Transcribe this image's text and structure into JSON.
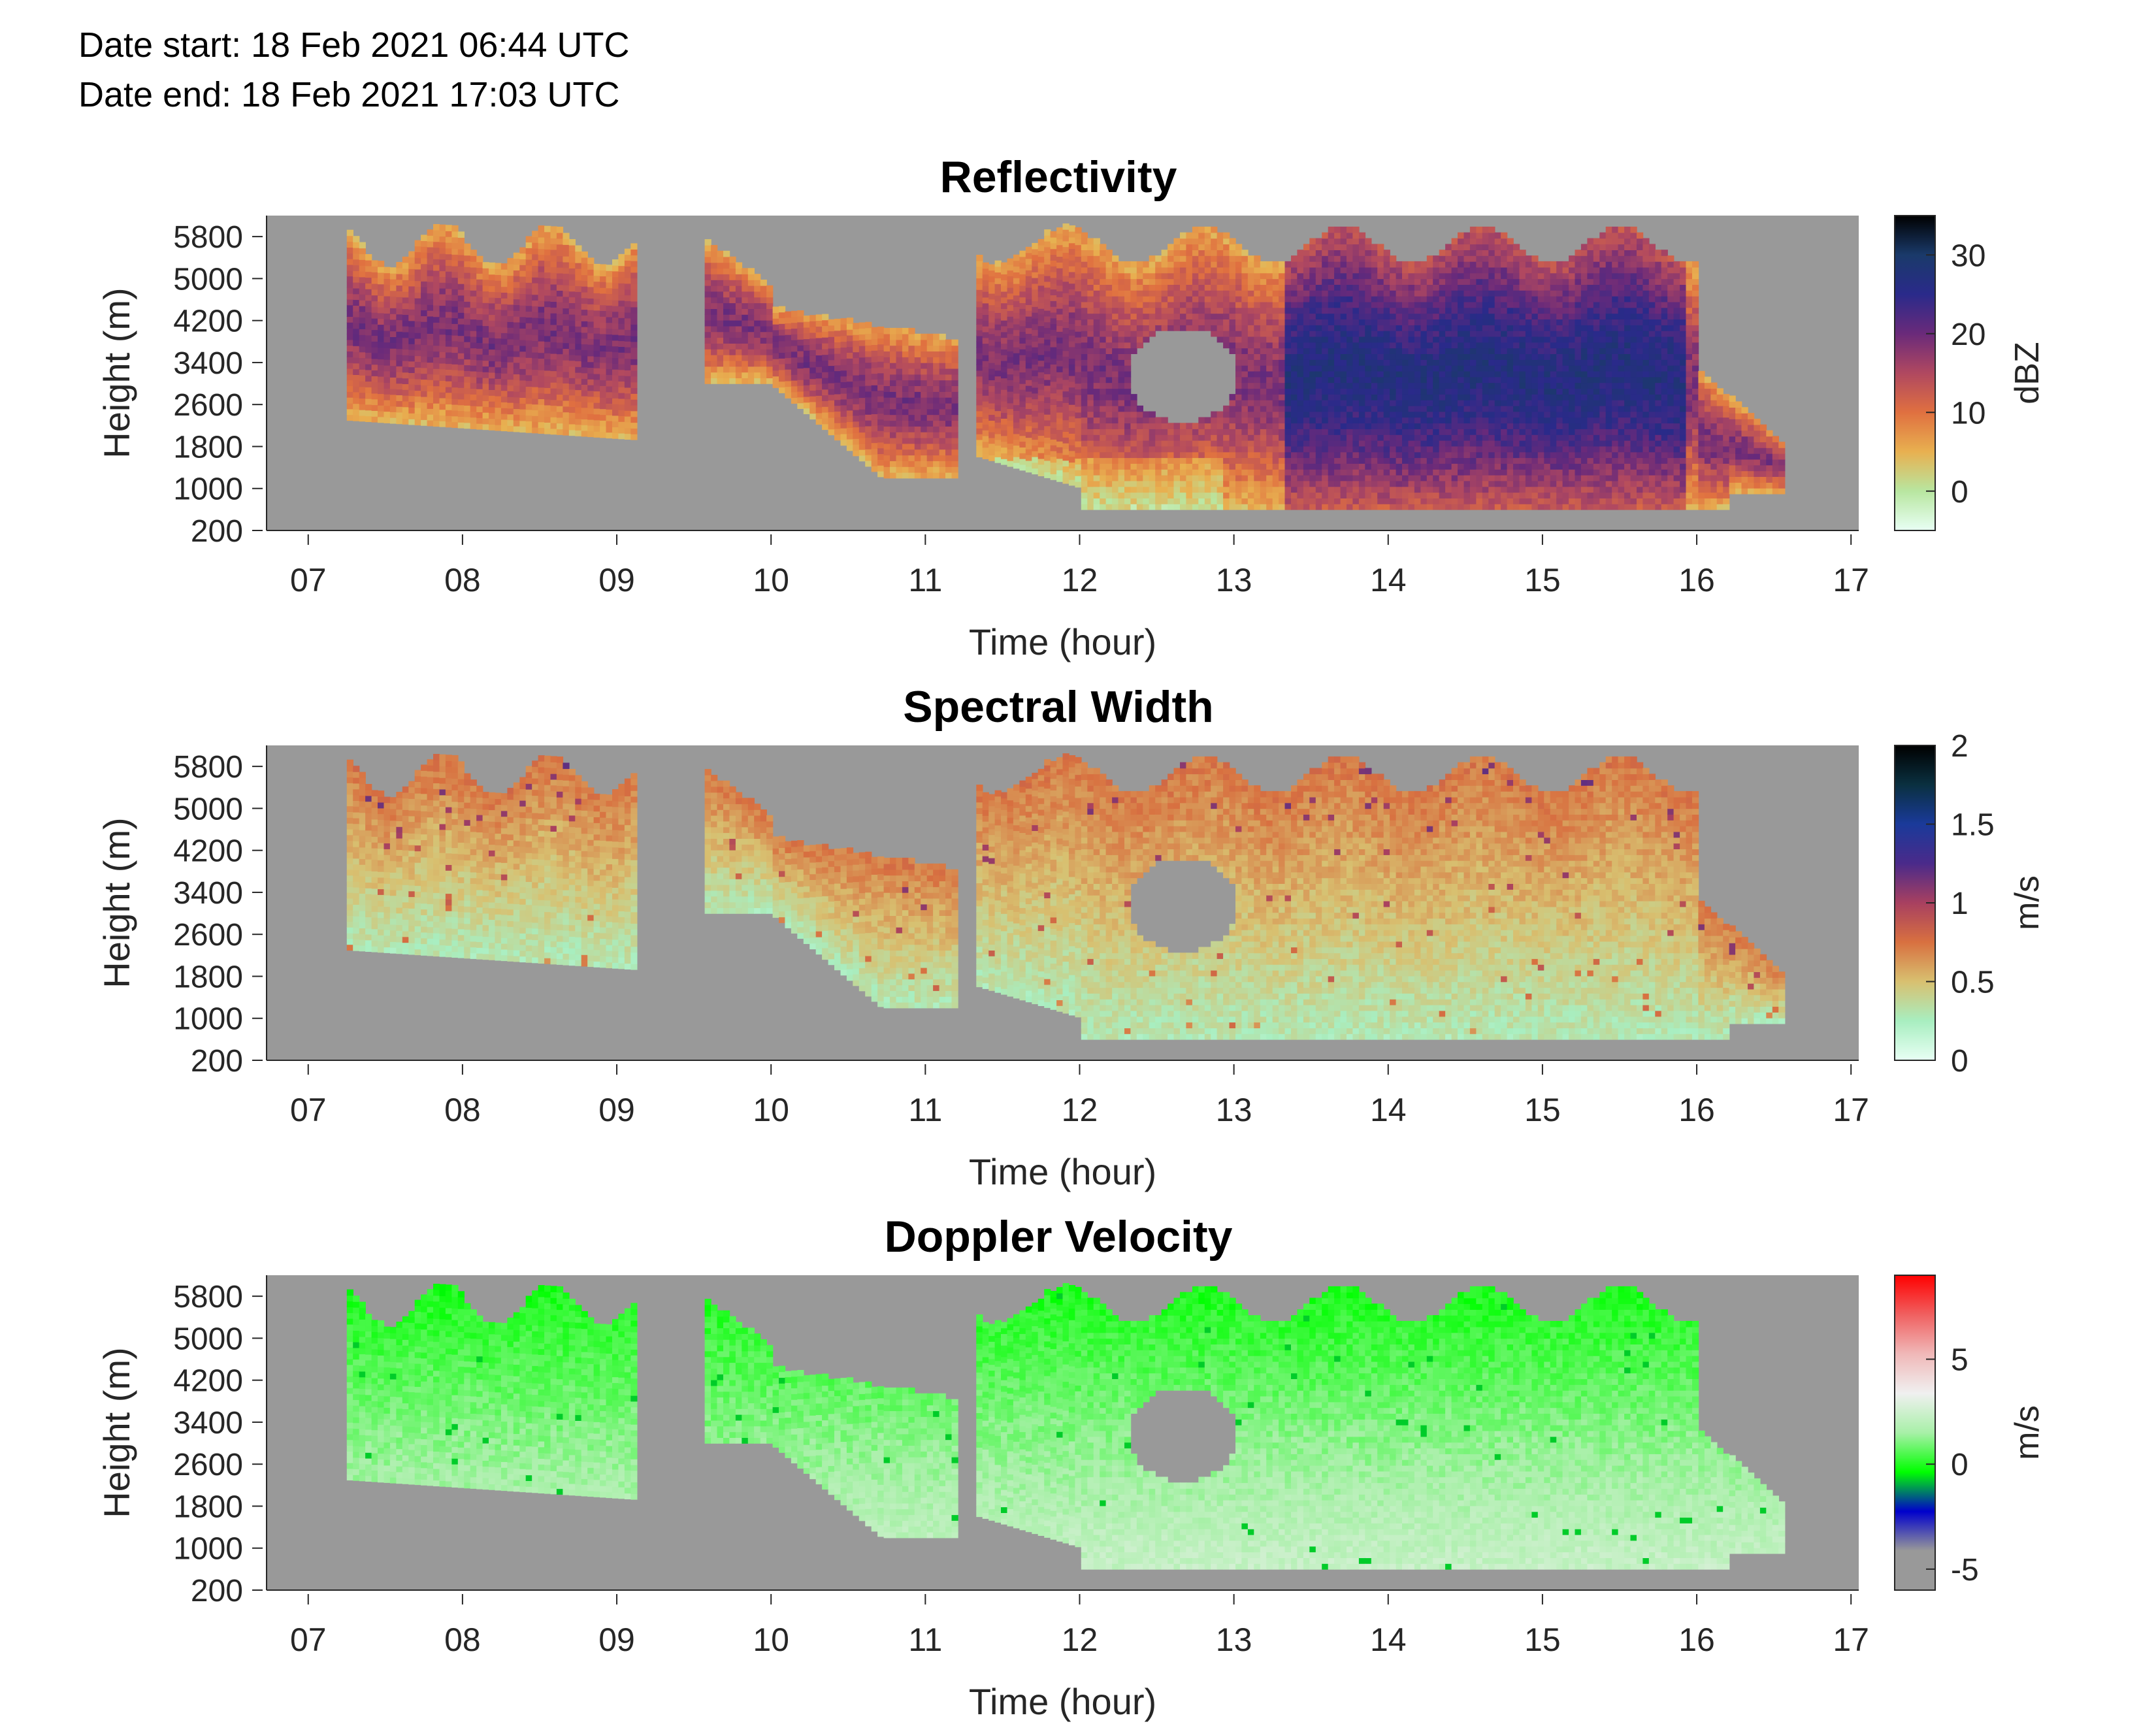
{
  "header": {
    "date_start": "Date start: 18 Feb 2021 06:44 UTC",
    "date_end": "Date end:  18 Feb 2021 17:03 UTC"
  },
  "chart_data": [
    {
      "type": "heatmap",
      "title": "Reflectivity",
      "xlabel": "Time (hour)",
      "ylabel": "Height (m)",
      "xticks": [
        "07",
        "08",
        "09",
        "10",
        "11",
        "12",
        "13",
        "14",
        "15",
        "16",
        "17"
      ],
      "yticks": [
        "200",
        "1000",
        "1800",
        "2600",
        "3400",
        "4200",
        "5000",
        "5800"
      ],
      "xlim": [
        6.73,
        17.05
      ],
      "ylim": [
        200,
        6200
      ],
      "colorbar": {
        "label": "dBZ",
        "ticks": [
          "0",
          "10",
          "20",
          "30"
        ],
        "range": [
          -5,
          35
        ],
        "stops": [
          "#e8fff4",
          "#b8e6a0",
          "#e8b050",
          "#e07040",
          "#b04860",
          "#6a2a7a",
          "#2a2a8a",
          "#1a3a6a",
          "#000000"
        ]
      },
      "background": "#999999",
      "data_extent": {
        "start_hour": 7.25,
        "end_hour": 16.55,
        "min_height": 600,
        "max_height": 6050
      }
    },
    {
      "type": "heatmap",
      "title": "Spectral Width",
      "xlabel": "Time (hour)",
      "ylabel": "Height (m)",
      "xticks": [
        "07",
        "08",
        "09",
        "10",
        "11",
        "12",
        "13",
        "14",
        "15",
        "16",
        "17"
      ],
      "yticks": [
        "200",
        "1000",
        "1800",
        "2600",
        "3400",
        "4200",
        "5000",
        "5800"
      ],
      "xlim": [
        6.73,
        17.05
      ],
      "ylim": [
        200,
        6200
      ],
      "colorbar": {
        "label": "m/s",
        "ticks": [
          "0",
          "0.5",
          "1",
          "1.5",
          "2"
        ],
        "range": [
          0,
          2
        ],
        "stops": [
          "#e8fff4",
          "#a8eec0",
          "#d8c070",
          "#d87040",
          "#a84060",
          "#4a2a8a",
          "#1a3a9a",
          "#0a3040",
          "#000000"
        ]
      },
      "background": "#999999",
      "data_extent": {
        "start_hour": 7.25,
        "end_hour": 16.55,
        "min_height": 600,
        "max_height": 6050
      }
    },
    {
      "type": "heatmap",
      "title": "Doppler Velocity",
      "xlabel": "Time (hour)",
      "ylabel": "Height (m)",
      "xticks": [
        "07",
        "08",
        "09",
        "10",
        "11",
        "12",
        "13",
        "14",
        "15",
        "16",
        "17"
      ],
      "yticks": [
        "200",
        "1000",
        "1800",
        "2600",
        "3400",
        "4200",
        "5000",
        "5800"
      ],
      "xlim": [
        6.73,
        17.05
      ],
      "ylim": [
        200,
        6200
      ],
      "colorbar": {
        "label": "m/s",
        "ticks": [
          "-5",
          "0",
          "5"
        ],
        "range": [
          -6,
          9
        ],
        "stops": [
          "#999999",
          "#999999",
          "#0000cc",
          "#00ff00",
          "#a8f0a8",
          "#f0f0f0",
          "#f0b8b8",
          "#f06060",
          "#ff0000"
        ]
      },
      "background": "#999999",
      "data_extent": {
        "start_hour": 7.25,
        "end_hour": 16.55,
        "min_height": 600,
        "max_height": 6050
      }
    }
  ]
}
